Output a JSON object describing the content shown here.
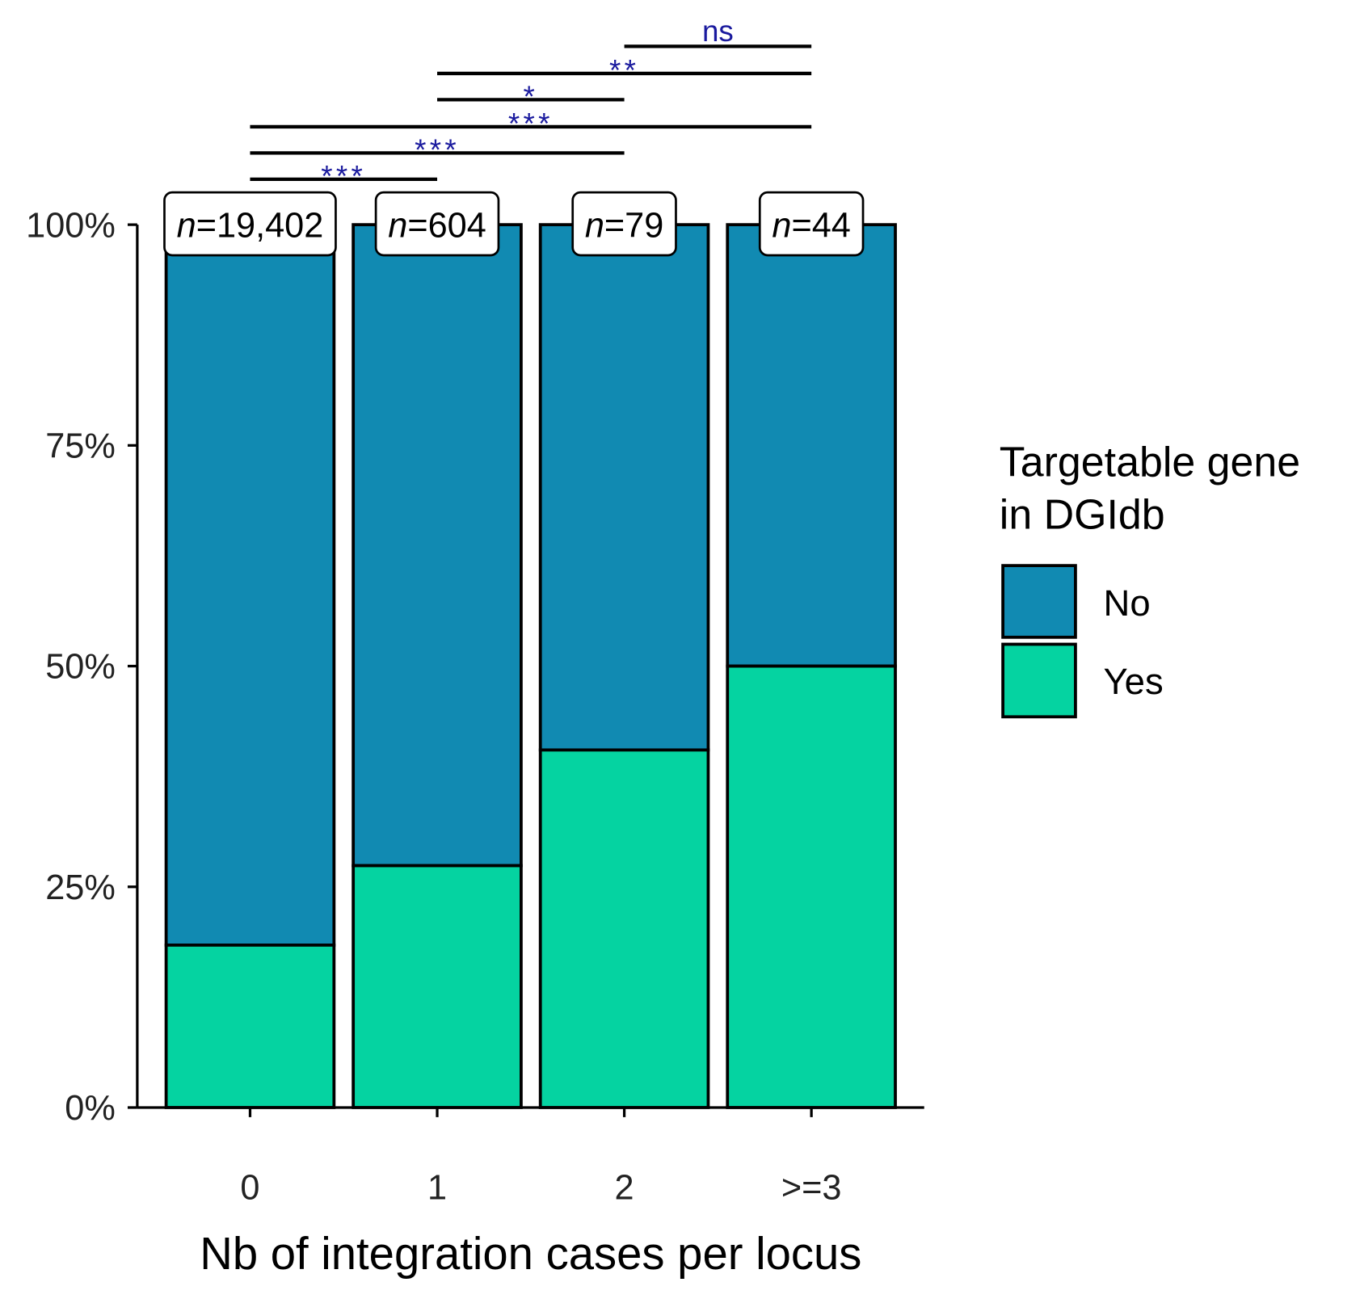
{
  "chart_data": {
    "type": "bar",
    "stacked": true,
    "percent": true,
    "categories": [
      "0",
      "1",
      "2",
      ">=3"
    ],
    "series": [
      {
        "name": "Yes",
        "color": "#05d3a1",
        "values": [
          18.4,
          27.4,
          40.5,
          50.0
        ]
      },
      {
        "name": "No",
        "color": "#118ab2",
        "values": [
          81.6,
          72.6,
          59.5,
          50.0
        ]
      }
    ],
    "n_labels": [
      "19,402",
      "604",
      "79",
      "44"
    ],
    "n_prefix": "n",
    "xlabel": "Nb of integration cases per locus",
    "ylabel": "",
    "ylim": [
      0,
      100
    ],
    "yticks": [
      "0%",
      "25%",
      "50%",
      "75%",
      "100%"
    ],
    "legend": {
      "title_lines": [
        "Targetable gene",
        "in DGIdb"
      ],
      "entries": [
        "No",
        "Yes"
      ],
      "placement": "right"
    },
    "comparisons": [
      {
        "from": "0",
        "to": "1",
        "label": "***"
      },
      {
        "from": "0",
        "to": "2",
        "label": "***"
      },
      {
        "from": "0",
        "to": ">=3",
        "label": "***"
      },
      {
        "from": "1",
        "to": "2",
        "label": "*"
      },
      {
        "from": "1",
        "to": ">=3",
        "label": "**"
      },
      {
        "from": "2",
        "to": ">=3",
        "label": "ns"
      }
    ]
  }
}
